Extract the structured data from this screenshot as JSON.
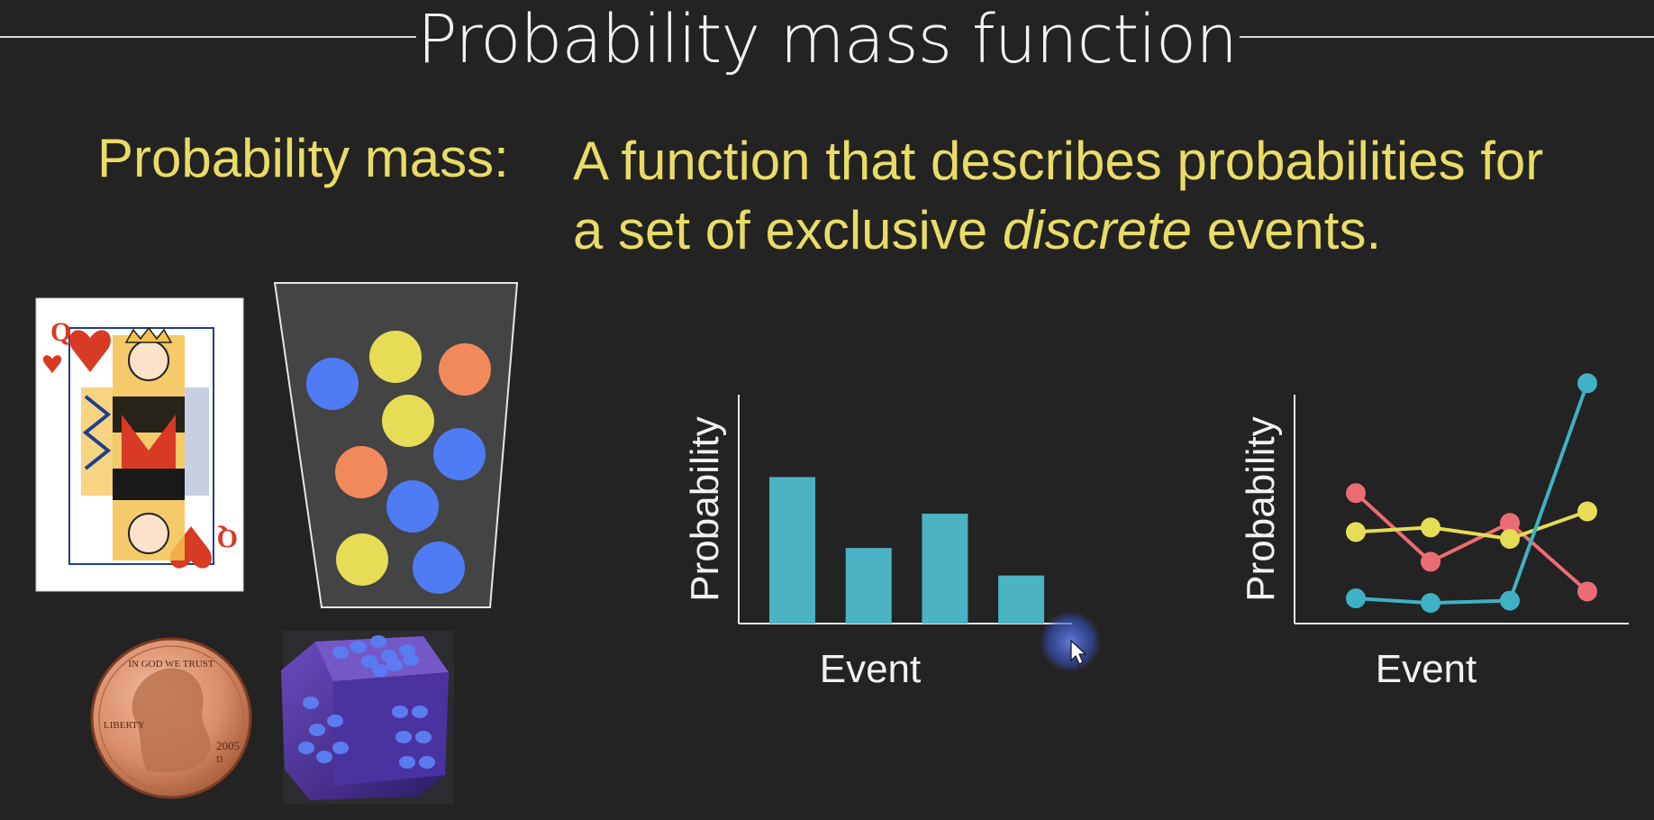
{
  "slide": {
    "title": "Probability mass function",
    "definition": {
      "term": "Probability mass:",
      "line1": "A function that describes probabilities for",
      "line2_before": "a set of exclusive ",
      "line2_emph": "discrete",
      "line2_after": " events."
    }
  },
  "images": {
    "card": {
      "rank": "Q",
      "suit": "heart-icon"
    },
    "coin": {
      "motto": "IN GOD WE TRUST",
      "left_word": "LIBERTY",
      "year": "2005",
      "mint_mark": "D"
    }
  },
  "colors": {
    "background": "#232323",
    "text_yellow": "#e8dc66",
    "bar": "#4bb3c4",
    "ball_blue": "#4f7cf4",
    "ball_yellow": "#e6dc55",
    "ball_orange": "#f2895a",
    "line_red": "#ec6c74",
    "line_yellow": "#e6dc55",
    "line_cyan": "#3eb2c4"
  },
  "urn_balls": [
    {
      "color": "blue"
    },
    {
      "color": "yellow"
    },
    {
      "color": "orange"
    },
    {
      "color": "yellow"
    },
    {
      "color": "orange"
    },
    {
      "color": "blue"
    },
    {
      "color": "blue"
    },
    {
      "color": "yellow"
    },
    {
      "color": "blue"
    }
  ],
  "chart_data": [
    {
      "type": "bar",
      "xlabel": "Event",
      "ylabel": "Probability",
      "categories": [
        "",
        "",
        "",
        ""
      ],
      "values": [
        0.64,
        0.33,
        0.48,
        0.21
      ],
      "ylim": [
        0,
        1
      ]
    },
    {
      "type": "line",
      "xlabel": "Event",
      "ylabel": "Probability",
      "x": [
        1,
        2,
        3,
        4
      ],
      "ylim": [
        0,
        1
      ],
      "series": [
        {
          "color": "#ec6c74",
          "values": [
            0.57,
            0.27,
            0.44,
            0.14
          ]
        },
        {
          "color": "#e6dc55",
          "values": [
            0.4,
            0.42,
            0.37,
            0.49
          ]
        },
        {
          "color": "#3eb2c4",
          "values": [
            0.11,
            0.09,
            0.1,
            1.05
          ]
        }
      ]
    }
  ]
}
